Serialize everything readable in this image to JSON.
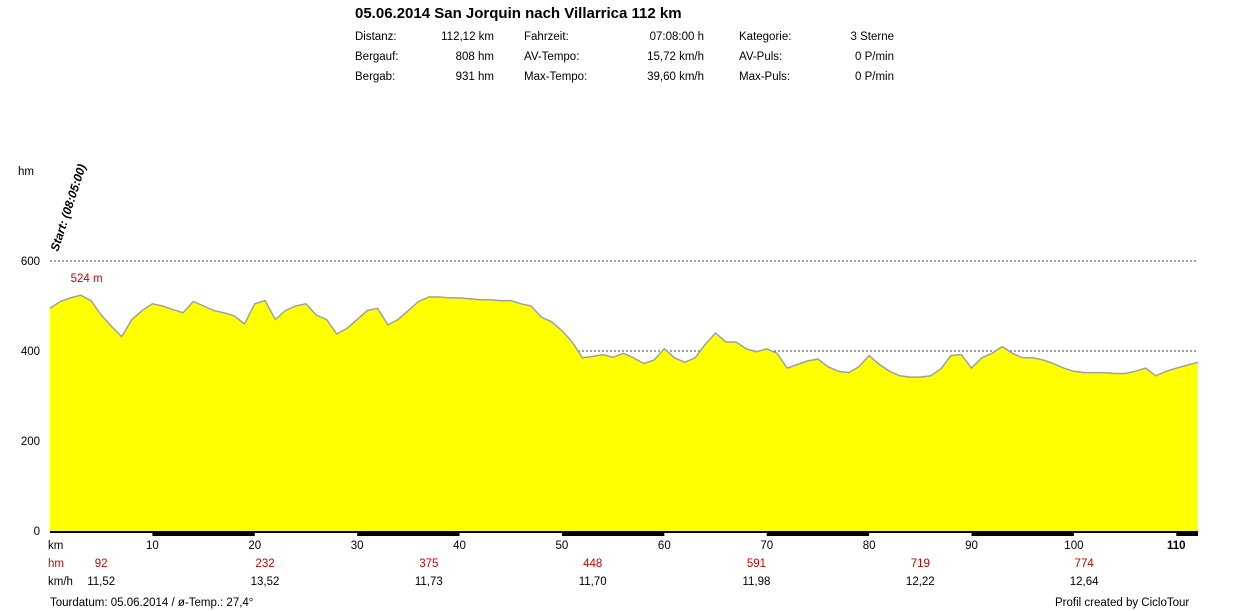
{
  "header": {
    "title": "05.06.2014 San Jorquin nach Villarrica 112 km",
    "stats": [
      {
        "label": "Distanz:",
        "value": "112,12 km"
      },
      {
        "label": "Bergauf:",
        "value": "808 hm"
      },
      {
        "label": "Bergab:",
        "value": "931 hm"
      },
      {
        "label": "Fahrzeit:",
        "value": "07:08:00 h"
      },
      {
        "label": "AV-Tempo:",
        "value": "15,72 km/h"
      },
      {
        "label": "Max-Tempo:",
        "value": "39,60 km/h"
      },
      {
        "label": "Kategorie:",
        "value": "3 Sterne"
      },
      {
        "label": "AV-Puls:",
        "value": "0 P/min"
      },
      {
        "label": "Max-Puls:",
        "value": "0 P/min"
      }
    ]
  },
  "chart_data": {
    "type": "area",
    "ylabel": "hm",
    "ylim": [
      0,
      700
    ],
    "xlim": [
      0,
      112.12
    ],
    "yticks": [
      {
        "v": 0,
        "label": "0"
      },
      {
        "v": 200,
        "label": "200"
      },
      {
        "v": 400,
        "label": "400"
      },
      {
        "v": 600,
        "label": "600"
      }
    ],
    "grid_dashed_at": [
      200,
      400,
      600
    ],
    "fill_color": "#ffff00",
    "line_color": "#a0a0a0",
    "start_label": "Start: (08:05:00)",
    "max_label": {
      "x": 2.5,
      "v": 524,
      "text": "524 m"
    },
    "x": [
      0,
      1,
      2,
      3,
      4,
      5,
      6,
      7,
      8,
      9,
      10,
      11,
      12,
      13,
      14,
      15,
      16,
      17,
      18,
      19,
      20,
      21,
      22,
      23,
      24,
      25,
      26,
      27,
      28,
      29,
      30,
      31,
      32,
      33,
      34,
      35,
      36,
      37,
      38,
      39,
      40,
      41,
      42,
      43,
      44,
      45,
      46,
      47,
      48,
      49,
      50,
      51,
      52,
      53,
      54,
      55,
      56,
      57,
      58,
      59,
      60,
      61,
      62,
      63,
      64,
      65,
      66,
      67,
      68,
      69,
      70,
      71,
      72,
      73,
      74,
      75,
      76,
      77,
      78,
      79,
      80,
      81,
      82,
      83,
      84,
      85,
      86,
      87,
      88,
      89,
      90,
      91,
      92,
      93,
      94,
      95,
      96,
      97,
      98,
      99,
      100,
      101,
      102,
      103,
      104,
      105,
      106,
      107,
      108,
      109,
      110,
      111,
      112.12
    ],
    "y": [
      495,
      510,
      518,
      524,
      512,
      480,
      455,
      432,
      470,
      490,
      505,
      500,
      492,
      485,
      510,
      500,
      490,
      485,
      478,
      460,
      505,
      512,
      470,
      490,
      500,
      505,
      480,
      470,
      438,
      450,
      470,
      490,
      495,
      458,
      470,
      490,
      510,
      520,
      520,
      518,
      518,
      516,
      514,
      514,
      512,
      512,
      505,
      500,
      475,
      465,
      445,
      420,
      385,
      388,
      392,
      386,
      395,
      385,
      372,
      380,
      405,
      385,
      375,
      385,
      415,
      440,
      420,
      420,
      405,
      398,
      405,
      395,
      362,
      370,
      378,
      382,
      365,
      355,
      352,
      365,
      390,
      370,
      355,
      345,
      342,
      342,
      345,
      360,
      390,
      392,
      362,
      385,
      395,
      410,
      395,
      385,
      385,
      380,
      372,
      362,
      355,
      352,
      352,
      352,
      350,
      350,
      355,
      362,
      345,
      355,
      362,
      368,
      375
    ],
    "x_axis": {
      "unit_km": "km",
      "km_ticks": [
        "10",
        "20",
        "30",
        "40",
        "50",
        "60",
        "70",
        "80",
        "90",
        "100",
        "110"
      ],
      "unit_hm": "hm",
      "hm_values": [
        "92",
        "232",
        "375",
        "448",
        "591",
        "719",
        "774"
      ],
      "unit_kmh": "km/h",
      "kmh_values": [
        "11,52",
        "13,52",
        "11,73",
        "11,70",
        "11,98",
        "12,22",
        "12,64"
      ]
    }
  },
  "footer": {
    "left": "Tourdatum: 05.06.2014  /  ø-Temp.: 27,4°",
    "right": "Profil created by CicloTour"
  }
}
